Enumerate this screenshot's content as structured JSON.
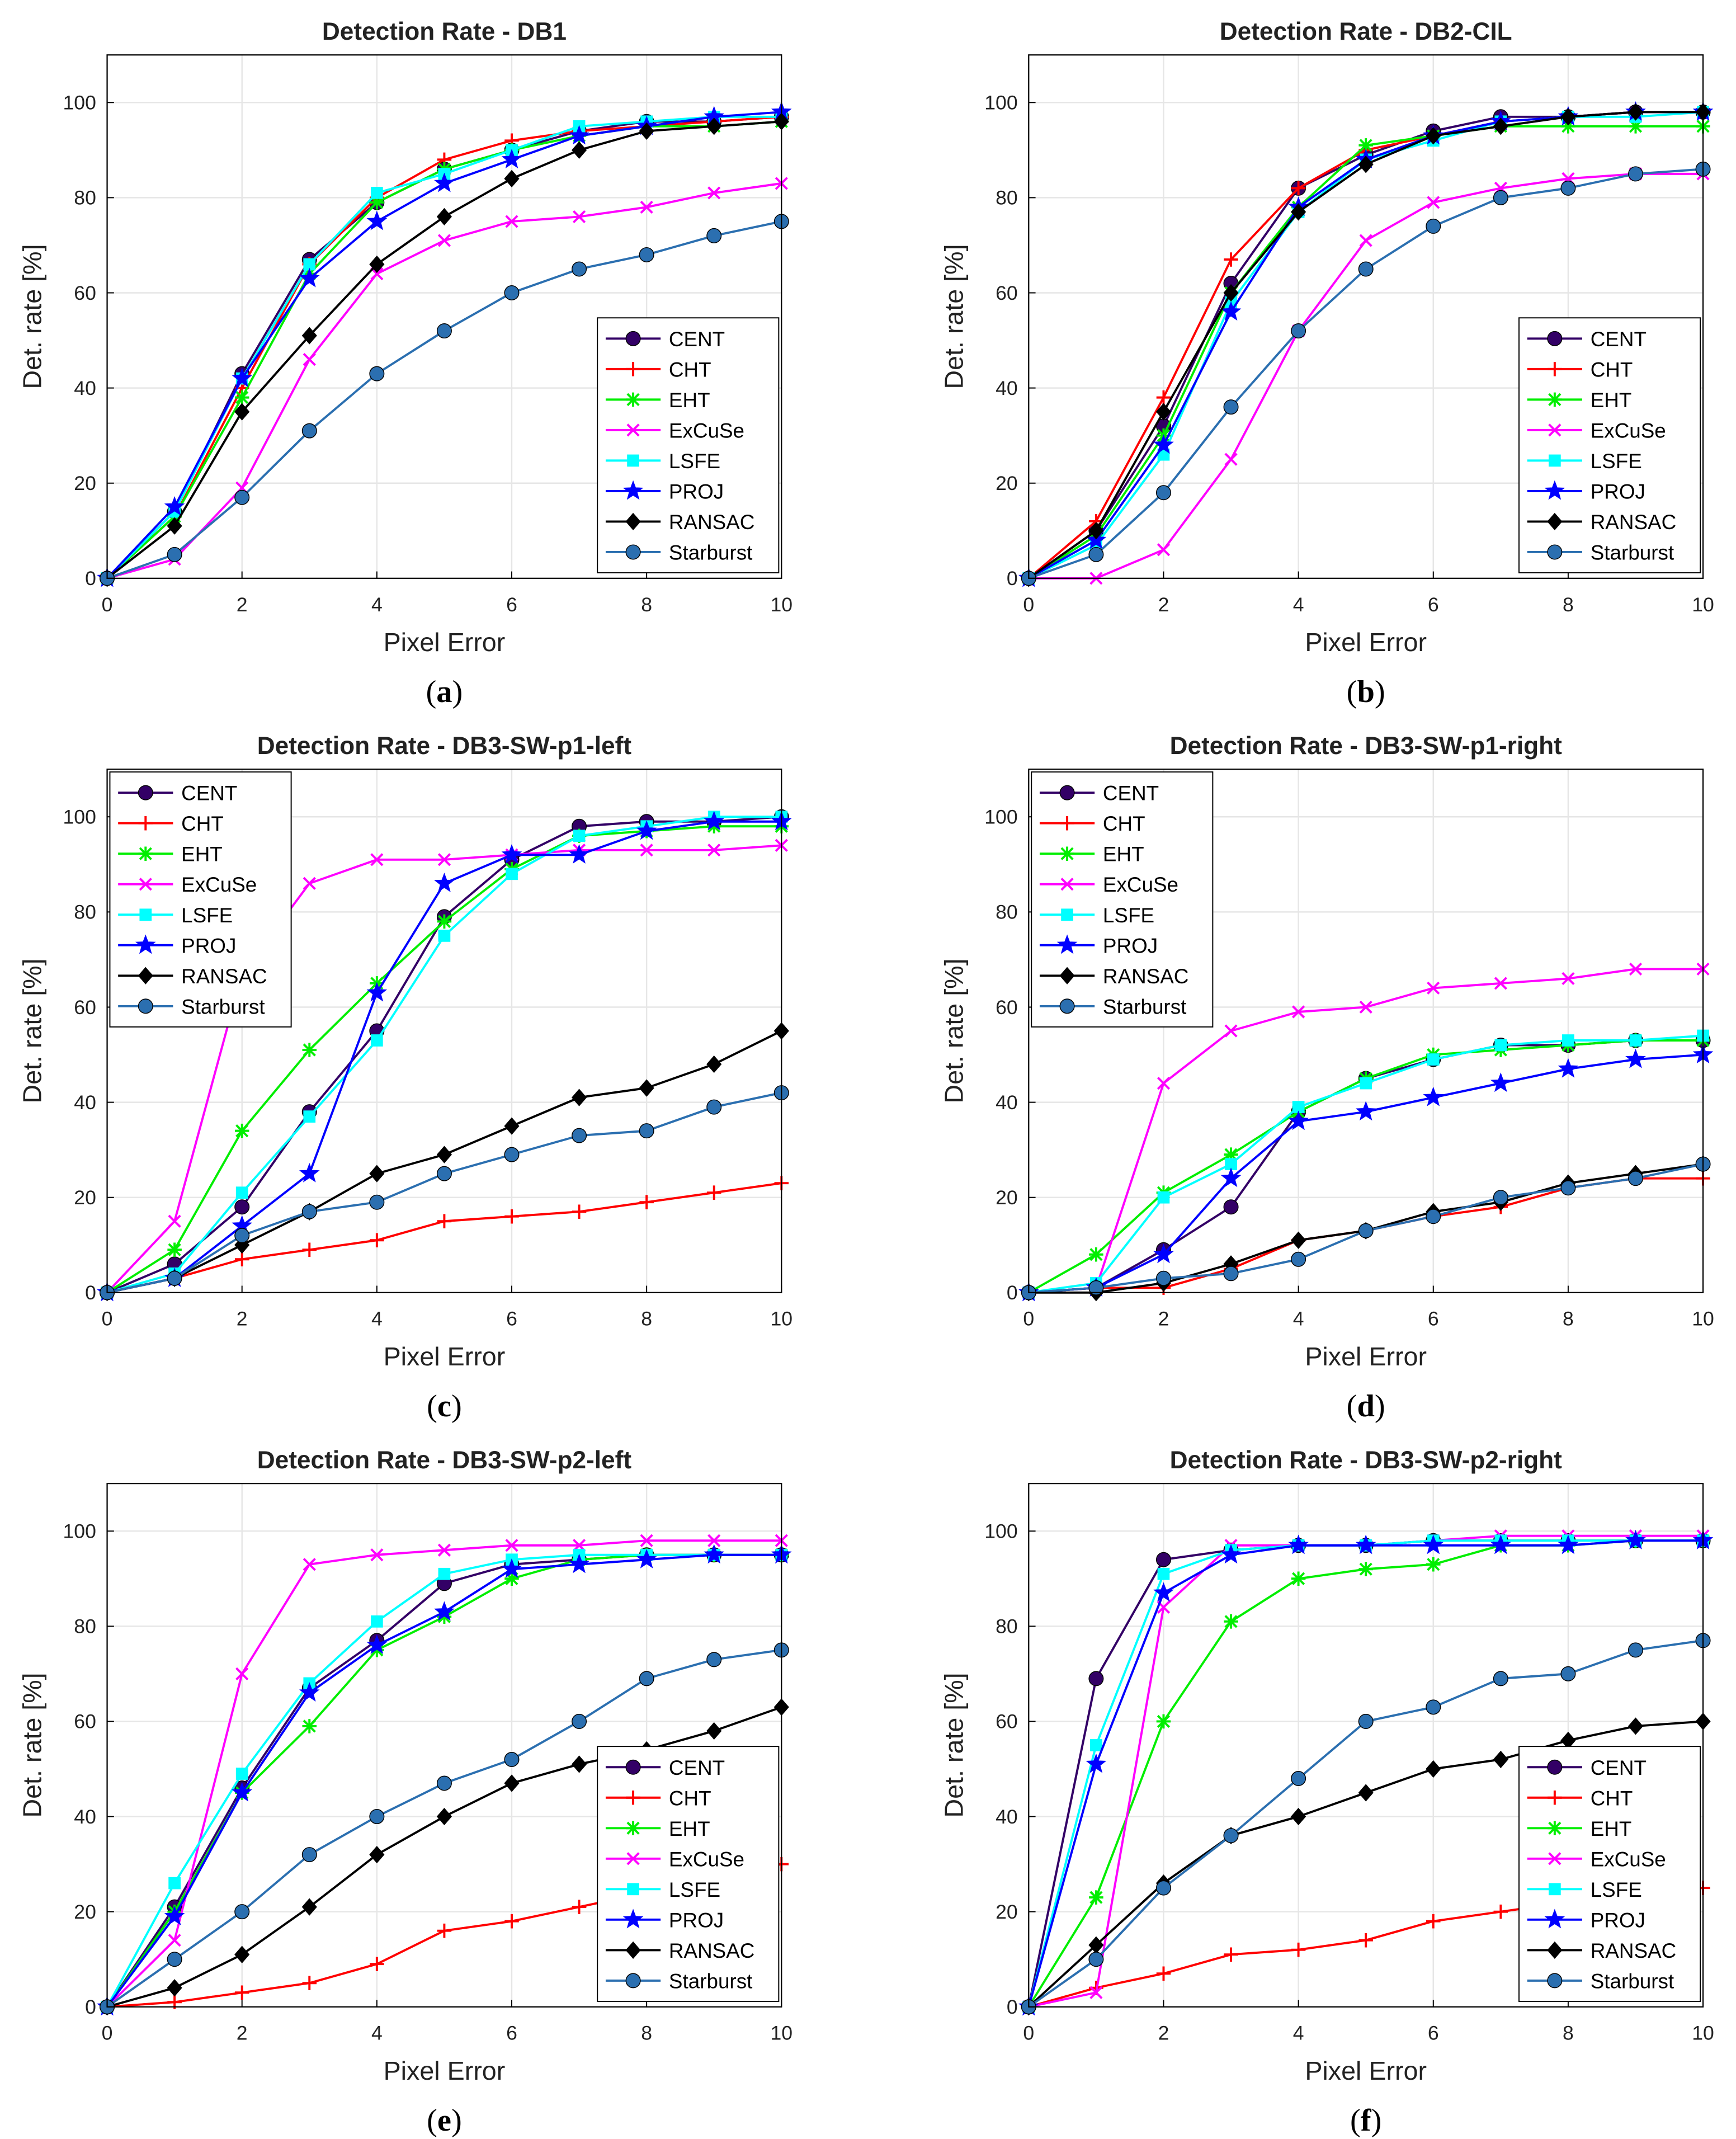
{
  "colors": {
    "CENT": "#330066",
    "CHT": "#ff0000",
    "EHT": "#00ee00",
    "ExCuSe": "#ff00ff",
    "LSFE": "#00ffff",
    "PROJ": "#0000ff",
    "RANSAC": "#000000",
    "Starburst": "#2b6fb0",
    "grid": "#e6e6e6",
    "axes": "#000000"
  },
  "markers": {
    "CENT": "circle-icon",
    "CHT": "plus-icon",
    "EHT": "asterisk-icon",
    "ExCuSe": "x-icon",
    "LSFE": "square-icon",
    "PROJ": "star-icon",
    "RANSAC": "diamond-icon",
    "Starburst": "circle-icon"
  },
  "chart_data": [
    {
      "id": "a",
      "panel_label": "a",
      "type": "line",
      "title": "Detection Rate - DB1",
      "xlabel": "Pixel Error",
      "ylabel": "Det. rate [%]",
      "xlim": [
        0,
        10
      ],
      "ylim": [
        0,
        110
      ],
      "xticks": [
        0,
        2,
        4,
        6,
        8,
        10
      ],
      "yticks": [
        0,
        20,
        40,
        60,
        80,
        100
      ],
      "grid": true,
      "legend_position": "bottom-right",
      "x": [
        0,
        1,
        2,
        3,
        4,
        5,
        6,
        7,
        8,
        9,
        10
      ],
      "series": [
        {
          "name": "CENT",
          "values": [
            0,
            14,
            43,
            67,
            79,
            86,
            90,
            94,
            96,
            96,
            97
          ]
        },
        {
          "name": "CHT",
          "values": [
            0,
            13,
            40,
            66,
            80,
            88,
            92,
            94,
            95,
            96,
            97
          ]
        },
        {
          "name": "EHT",
          "values": [
            0,
            13,
            38,
            64,
            79,
            86,
            90,
            93,
            95,
            95,
            96
          ]
        },
        {
          "name": "ExCuSe",
          "values": [
            0,
            4,
            19,
            46,
            64,
            71,
            75,
            76,
            78,
            81,
            83
          ]
        },
        {
          "name": "LSFE",
          "values": [
            0,
            14,
            42,
            66,
            81,
            85,
            90,
            95,
            96,
            97,
            97
          ]
        },
        {
          "name": "PROJ",
          "values": [
            0,
            15,
            42,
            63,
            75,
            83,
            88,
            93,
            95,
            97,
            98
          ]
        },
        {
          "name": "RANSAC",
          "values": [
            0,
            11,
            35,
            51,
            66,
            76,
            84,
            90,
            94,
            95,
            96
          ]
        },
        {
          "name": "Starburst",
          "values": [
            0,
            5,
            17,
            31,
            43,
            52,
            60,
            65,
            68,
            72,
            75
          ]
        }
      ]
    },
    {
      "id": "b",
      "panel_label": "b",
      "type": "line",
      "title": "Detection Rate - DB2-CIL",
      "xlabel": "Pixel Error",
      "ylabel": "Det. rate [%]",
      "xlim": [
        0,
        10
      ],
      "ylim": [
        0,
        110
      ],
      "xticks": [
        0,
        2,
        4,
        6,
        8,
        10
      ],
      "yticks": [
        0,
        20,
        40,
        60,
        80,
        100
      ],
      "grid": true,
      "legend_position": "bottom-right",
      "x": [
        0,
        1,
        2,
        3,
        4,
        5,
        6,
        7,
        8,
        9,
        10
      ],
      "series": [
        {
          "name": "CENT",
          "values": [
            0,
            10,
            32,
            62,
            82,
            89,
            94,
            97,
            97,
            98,
            98
          ]
        },
        {
          "name": "CHT",
          "values": [
            0,
            12,
            38,
            67,
            82,
            90,
            93,
            96,
            97,
            98,
            98
          ]
        },
        {
          "name": "EHT",
          "values": [
            0,
            9,
            30,
            60,
            78,
            91,
            93,
            95,
            95,
            95,
            95
          ]
        },
        {
          "name": "ExCuSe",
          "values": [
            0,
            0,
            6,
            25,
            52,
            71,
            79,
            82,
            84,
            85,
            85
          ]
        },
        {
          "name": "LSFE",
          "values": [
            0,
            7,
            26,
            58,
            77,
            88,
            92,
            96,
            97,
            97,
            98
          ]
        },
        {
          "name": "PROJ",
          "values": [
            0,
            8,
            28,
            56,
            78,
            88,
            93,
            96,
            97,
            98,
            98
          ]
        },
        {
          "name": "RANSAC",
          "values": [
            0,
            10,
            35,
            60,
            77,
            87,
            93,
            95,
            97,
            98,
            98
          ]
        },
        {
          "name": "Starburst",
          "values": [
            0,
            5,
            18,
            36,
            52,
            65,
            74,
            80,
            82,
            85,
            86
          ]
        }
      ]
    },
    {
      "id": "c",
      "panel_label": "c",
      "type": "line",
      "title": "Detection Rate - DB3-SW-p1-left",
      "xlabel": "Pixel Error",
      "ylabel": "Det. rate [%]",
      "xlim": [
        0,
        10
      ],
      "ylim": [
        0,
        110
      ],
      "xticks": [
        0,
        2,
        4,
        6,
        8,
        10
      ],
      "yticks": [
        0,
        20,
        40,
        60,
        80,
        100
      ],
      "grid": true,
      "legend_position": "top-left",
      "x": [
        0,
        1,
        2,
        3,
        4,
        5,
        6,
        7,
        8,
        9,
        10
      ],
      "series": [
        {
          "name": "CENT",
          "values": [
            0,
            6,
            18,
            38,
            55,
            79,
            91,
            98,
            99,
            99,
            100
          ]
        },
        {
          "name": "CHT",
          "values": [
            0,
            3,
            7,
            9,
            11,
            15,
            16,
            17,
            19,
            21,
            23
          ]
        },
        {
          "name": "EHT",
          "values": [
            0,
            9,
            34,
            51,
            65,
            78,
            89,
            96,
            97,
            98,
            98
          ]
        },
        {
          "name": "ExCuSe",
          "values": [
            0,
            15,
            67,
            86,
            91,
            91,
            92,
            93,
            93,
            93,
            94
          ]
        },
        {
          "name": "LSFE",
          "values": [
            0,
            4,
            21,
            37,
            53,
            75,
            88,
            96,
            98,
            100,
            100
          ]
        },
        {
          "name": "PROJ",
          "values": [
            0,
            3,
            14,
            25,
            63,
            86,
            92,
            92,
            97,
            99,
            99
          ]
        },
        {
          "name": "RANSAC",
          "values": [
            0,
            3,
            10,
            17,
            25,
            29,
            35,
            41,
            43,
            48,
            55
          ]
        },
        {
          "name": "Starburst",
          "values": [
            0,
            3,
            12,
            17,
            19,
            25,
            29,
            33,
            34,
            39,
            42
          ]
        }
      ]
    },
    {
      "id": "d",
      "panel_label": "d",
      "type": "line",
      "title": "Detection Rate - DB3-SW-p1-right",
      "xlabel": "Pixel Error",
      "ylabel": "Det. rate [%]",
      "xlim": [
        0,
        10
      ],
      "ylim": [
        0,
        110
      ],
      "xticks": [
        0,
        2,
        4,
        6,
        8,
        10
      ],
      "yticks": [
        0,
        20,
        40,
        60,
        80,
        100
      ],
      "grid": true,
      "legend_position": "top-left",
      "x": [
        0,
        1,
        2,
        3,
        4,
        5,
        6,
        7,
        8,
        9,
        10
      ],
      "series": [
        {
          "name": "CENT",
          "values": [
            0,
            1,
            9,
            18,
            38,
            45,
            49,
            52,
            52,
            53,
            53
          ]
        },
        {
          "name": "CHT",
          "values": [
            0,
            1,
            1,
            5,
            11,
            13,
            16,
            18,
            22,
            24,
            24
          ]
        },
        {
          "name": "EHT",
          "values": [
            0,
            8,
            21,
            29,
            38,
            45,
            50,
            51,
            52,
            53,
            53
          ]
        },
        {
          "name": "ExCuSe",
          "values": [
            0,
            1,
            44,
            55,
            59,
            60,
            64,
            65,
            66,
            68,
            68
          ]
        },
        {
          "name": "LSFE",
          "values": [
            0,
            2,
            20,
            27,
            39,
            44,
            49,
            52,
            53,
            53,
            54
          ]
        },
        {
          "name": "PROJ",
          "values": [
            0,
            1,
            8,
            24,
            36,
            38,
            41,
            44,
            47,
            49,
            50
          ]
        },
        {
          "name": "RANSAC",
          "values": [
            0,
            0,
            2,
            6,
            11,
            13,
            17,
            19,
            23,
            25,
            27
          ]
        },
        {
          "name": "Starburst",
          "values": [
            0,
            1,
            3,
            4,
            7,
            13,
            16,
            20,
            22,
            24,
            27
          ]
        }
      ]
    },
    {
      "id": "e",
      "panel_label": "e",
      "type": "line",
      "title": "Detection Rate - DB3-SW-p2-left",
      "xlabel": "Pixel Error",
      "ylabel": "Det. rate [%]",
      "xlim": [
        0,
        10
      ],
      "ylim": [
        0,
        110
      ],
      "xticks": [
        0,
        2,
        4,
        6,
        8,
        10
      ],
      "yticks": [
        0,
        20,
        40,
        60,
        80,
        100
      ],
      "grid": true,
      "legend_position": "bottom-right",
      "x": [
        0,
        1,
        2,
        3,
        4,
        5,
        6,
        7,
        8,
        9,
        10
      ],
      "series": [
        {
          "name": "CENT",
          "values": [
            0,
            21,
            46,
            67,
            77,
            89,
            93,
            94,
            95,
            95,
            95
          ]
        },
        {
          "name": "CHT",
          "values": [
            0,
            1,
            3,
            5,
            9,
            16,
            18,
            21,
            24,
            27,
            30
          ]
        },
        {
          "name": "EHT",
          "values": [
            0,
            20,
            45,
            59,
            75,
            82,
            90,
            94,
            95,
            95,
            95
          ]
        },
        {
          "name": "ExCuSe",
          "values": [
            0,
            14,
            70,
            93,
            95,
            96,
            97,
            97,
            98,
            98,
            98
          ]
        },
        {
          "name": "LSFE",
          "values": [
            0,
            26,
            49,
            68,
            81,
            91,
            94,
            95,
            95,
            95,
            95
          ]
        },
        {
          "name": "PROJ",
          "values": [
            0,
            19,
            45,
            66,
            76,
            83,
            92,
            93,
            94,
            95,
            95
          ]
        },
        {
          "name": "RANSAC",
          "values": [
            0,
            4,
            11,
            21,
            32,
            40,
            47,
            51,
            54,
            58,
            63
          ]
        },
        {
          "name": "Starburst",
          "values": [
            0,
            10,
            20,
            32,
            40,
            47,
            52,
            60,
            69,
            73,
            75
          ]
        }
      ]
    },
    {
      "id": "f",
      "panel_label": "f",
      "type": "line",
      "title": "Detection Rate - DB3-SW-p2-right",
      "xlabel": "Pixel Error",
      "ylabel": "Det. rate [%]",
      "xlim": [
        0,
        10
      ],
      "ylim": [
        0,
        110
      ],
      "xticks": [
        0,
        2,
        4,
        6,
        8,
        10
      ],
      "yticks": [
        0,
        20,
        40,
        60,
        80,
        100
      ],
      "grid": true,
      "legend_position": "bottom-right",
      "x": [
        0,
        1,
        2,
        3,
        4,
        5,
        6,
        7,
        8,
        9,
        10
      ],
      "series": [
        {
          "name": "CENT",
          "values": [
            0,
            69,
            94,
            96,
            97,
            97,
            98,
            98,
            98,
            98,
            98
          ]
        },
        {
          "name": "CHT",
          "values": [
            0,
            4,
            7,
            11,
            12,
            14,
            18,
            20,
            22,
            24,
            25
          ]
        },
        {
          "name": "EHT",
          "values": [
            0,
            23,
            60,
            81,
            90,
            92,
            93,
            97,
            97,
            98,
            98
          ]
        },
        {
          "name": "ExCuSe",
          "values": [
            0,
            3,
            84,
            97,
            97,
            97,
            98,
            99,
            99,
            99,
            99
          ]
        },
        {
          "name": "LSFE",
          "values": [
            0,
            55,
            91,
            96,
            97,
            97,
            98,
            98,
            98,
            98,
            98
          ]
        },
        {
          "name": "PROJ",
          "values": [
            0,
            51,
            87,
            95,
            97,
            97,
            97,
            97,
            97,
            98,
            98
          ]
        },
        {
          "name": "RANSAC",
          "values": [
            0,
            13,
            26,
            36,
            40,
            45,
            50,
            52,
            56,
            59,
            60
          ]
        },
        {
          "name": "Starburst",
          "values": [
            0,
            10,
            25,
            36,
            48,
            60,
            63,
            69,
            70,
            75,
            77
          ]
        }
      ]
    }
  ]
}
